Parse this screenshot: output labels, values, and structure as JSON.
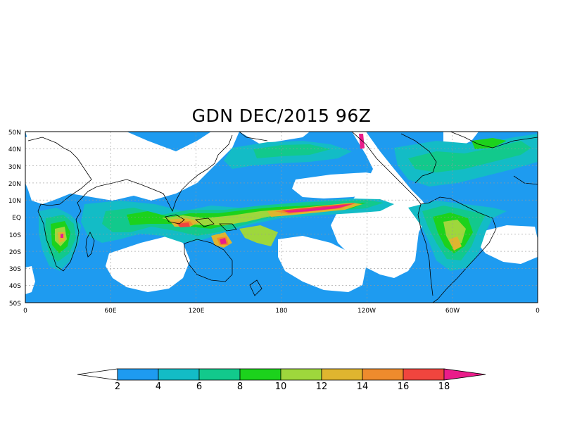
{
  "title": "GDN DEC/2015 96Z",
  "map": {
    "lat_labels": [
      "50N",
      "40N",
      "30N",
      "20N",
      "10N",
      "EQ",
      "10S",
      "20S",
      "30S",
      "40S",
      "50S"
    ],
    "lon_labels": [
      "0",
      "60E",
      "120E",
      "180",
      "120W",
      "60W",
      "0"
    ]
  },
  "colorbar": {
    "labels": [
      "2",
      "4",
      "6",
      "8",
      "10",
      "12",
      "14",
      "16",
      "18"
    ],
    "colors": [
      "#ffffff",
      "#1e9bf0",
      "#13bcc6",
      "#12c98c",
      "#1cd21c",
      "#9ed73c",
      "#dfb52f",
      "#ee8b2d",
      "#f0453e",
      "#ea1c8a"
    ]
  }
}
